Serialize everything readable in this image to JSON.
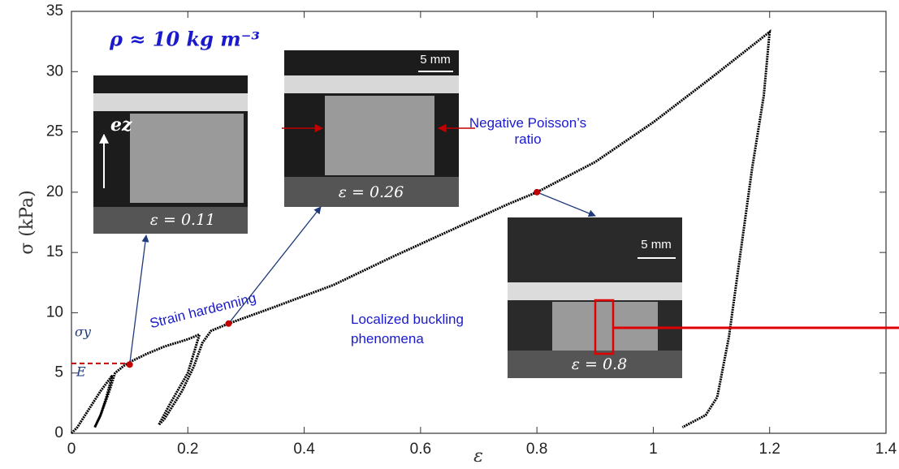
{
  "chart_data": {
    "type": "line",
    "xlabel": "ε",
    "ylabel": "σ (kPa)",
    "xlim": [
      0,
      1.4
    ],
    "xticks": [
      0,
      0.2,
      0.4,
      0.6,
      0.8,
      1,
      1.2,
      1.4
    ],
    "ylim": [
      0,
      35
    ],
    "yticks": [
      0,
      5,
      10,
      15,
      20,
      25,
      30,
      35
    ],
    "series": [
      {
        "color": "#000000",
        "x": [
          0,
          0.01,
          0.03,
          0.05,
          0.07,
          0.06,
          0.05,
          0.04,
          0.05,
          0.065,
          0.075,
          0.09,
          0.1,
          0.13,
          0.16,
          0.2,
          0.22,
          0.2,
          0.17,
          0.15,
          0.16,
          0.19,
          0.21,
          0.225,
          0.24,
          0.27,
          0.35,
          0.45,
          0.55,
          0.65,
          0.75,
          0.8,
          0.9,
          1.0,
          1.1,
          1.2,
          1.19,
          1.17,
          1.15,
          1.13,
          1.11,
          1.09,
          1.07,
          1.05
        ],
        "values": [
          0,
          0.5,
          2,
          3.5,
          4.8,
          3,
          1.5,
          0.5,
          1.5,
          3.5,
          5,
          5.6,
          5.9,
          6.6,
          7.2,
          7.8,
          8.2,
          5,
          2.5,
          0.7,
          1.2,
          3.5,
          5.5,
          7.5,
          8.5,
          9.1,
          10.5,
          12.3,
          14.6,
          16.8,
          19,
          20,
          22.5,
          25.8,
          29.5,
          33.3,
          28,
          22,
          15,
          8,
          3,
          1.5,
          1,
          0.5
        ]
      },
      {
        "color": "#c00000",
        "x": [
          0.1,
          0.27,
          0.8
        ],
        "values": [
          5.7,
          9.1,
          20
        ]
      }
    ],
    "yield_stress": 5.8,
    "annotations": {
      "density": "ρ ≈ 10 kg m⁻³",
      "yield_label": "σy",
      "modulus_label": "E",
      "hardening": "Strain hardenning",
      "poisson": "Negative Poisson’s ratio",
      "buckling": "Localized buckling phenomena",
      "axis_label": "ez"
    },
    "insets": [
      {
        "label": "ε = 0.11"
      },
      {
        "label": "ε = 0.26",
        "scale": "5 mm"
      },
      {
        "label": "ε = 0.8",
        "scale": "5 mm"
      }
    ]
  }
}
